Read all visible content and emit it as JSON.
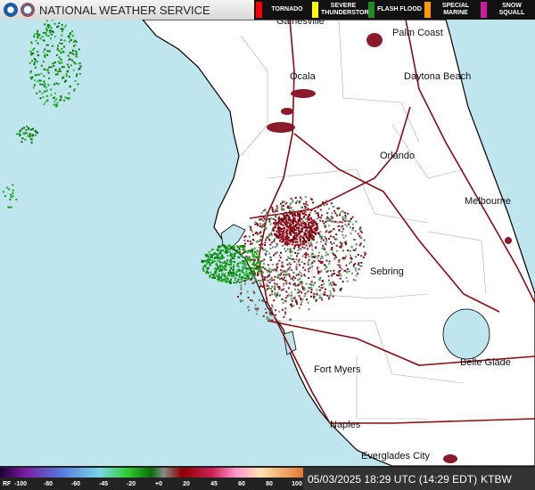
{
  "header": {
    "agency": "NATIONAL WEATHER SERVICE"
  },
  "warnings": [
    {
      "label": "TORNADO",
      "color": "#ff0000"
    },
    {
      "label": "SEVERE THUNDERSTORM",
      "color": "#ffff00"
    },
    {
      "label": "FLASH FLOOD",
      "color": "#1e8c1e"
    },
    {
      "label": "SPECIAL MARINE",
      "color": "#ff9900"
    },
    {
      "label": "SNOW SQUALL",
      "color": "#cc1b9c"
    }
  ],
  "cities": [
    "Gainesville",
    "Palm Coast",
    "Ocala",
    "Daytona Beach",
    "Orlando",
    "Melbourne",
    "Sebring",
    "Fort Myers",
    "Belle Glade",
    "Naples",
    "Everglades City"
  ],
  "scale": {
    "unit": "RF",
    "ticks": [
      "-100",
      "-80",
      "-60",
      "-45",
      "-20",
      "+0",
      "20",
      "45",
      "60",
      "80",
      "100"
    ]
  },
  "footer": {
    "timestamp": "05/03/2025 18:29 UTC (14:29 EDT)",
    "station": "KTBW"
  }
}
